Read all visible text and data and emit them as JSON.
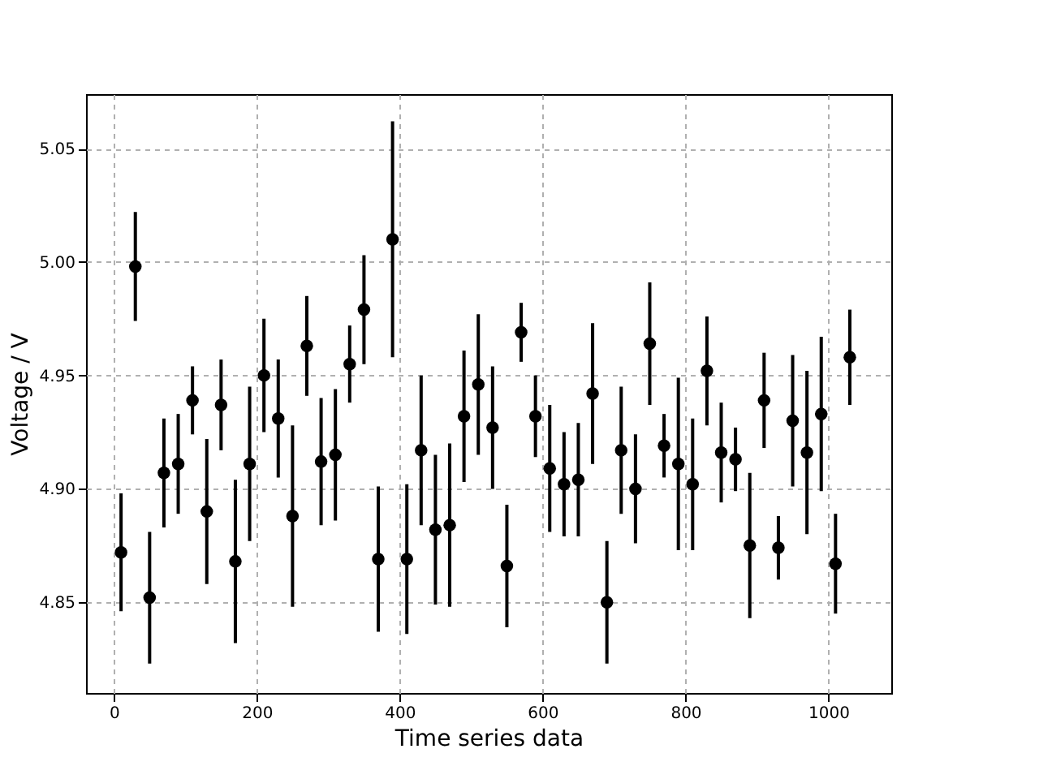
{
  "chart_data": {
    "type": "scatter",
    "xlabel": "Time series data",
    "ylabel": "Voltage / V",
    "x": [
      10,
      30,
      50,
      70,
      90,
      110,
      130,
      150,
      170,
      190,
      210,
      230,
      250,
      270,
      290,
      310,
      330,
      350,
      370,
      390,
      410,
      430,
      450,
      470,
      490,
      510,
      530,
      550,
      570,
      590,
      610,
      630,
      650,
      670,
      690,
      710,
      730,
      750,
      770,
      790,
      810,
      830,
      850,
      870,
      890,
      910,
      930,
      950,
      970,
      990,
      1010,
      1030
    ],
    "series": [
      {
        "color": "#000000",
        "values": [
          4.872,
          4.998,
          4.852,
          4.907,
          4.911,
          4.939,
          4.89,
          4.937,
          4.868,
          4.911,
          4.95,
          4.931,
          4.888,
          4.963,
          4.912,
          4.915,
          4.955,
          4.979,
          4.869,
          5.01,
          4.869,
          4.917,
          4.882,
          4.884,
          4.932,
          4.946,
          4.927,
          4.866,
          4.969,
          4.932,
          4.909,
          4.902,
          4.904,
          4.942,
          4.85,
          4.917,
          4.9,
          4.964,
          4.919,
          4.911,
          4.902,
          4.952,
          4.916,
          4.913,
          4.875,
          4.939,
          4.874,
          4.93,
          4.916,
          4.933,
          4.867,
          4.958
        ],
        "errors": [
          0.026,
          0.024,
          0.029,
          0.024,
          0.022,
          0.015,
          0.032,
          0.02,
          0.036,
          0.034,
          0.025,
          0.026,
          0.04,
          0.022,
          0.028,
          0.029,
          0.017,
          0.024,
          0.032,
          0.052,
          0.033,
          0.033,
          0.033,
          0.036,
          0.029,
          0.031,
          0.027,
          0.027,
          0.013,
          0.018,
          0.028,
          0.023,
          0.025,
          0.031,
          0.027,
          0.028,
          0.024,
          0.027,
          0.014,
          0.038,
          0.029,
          0.024,
          0.022,
          0.014,
          0.032,
          0.021,
          0.014,
          0.029,
          0.036,
          0.034,
          0.022,
          0.021
        ]
      }
    ],
    "xlim": [
      -39,
      1088
    ],
    "ylim": [
      4.81,
      5.074
    ],
    "xticks": [
      0,
      200,
      400,
      600,
      800,
      1000
    ],
    "yticks": [
      4.85,
      {
        "value": 4.9,
        "label": "4.90"
      },
      4.95,
      {
        "value": 5.0,
        "label": "5.00"
      },
      5.05
    ],
    "grid": true,
    "marker": "circle"
  }
}
